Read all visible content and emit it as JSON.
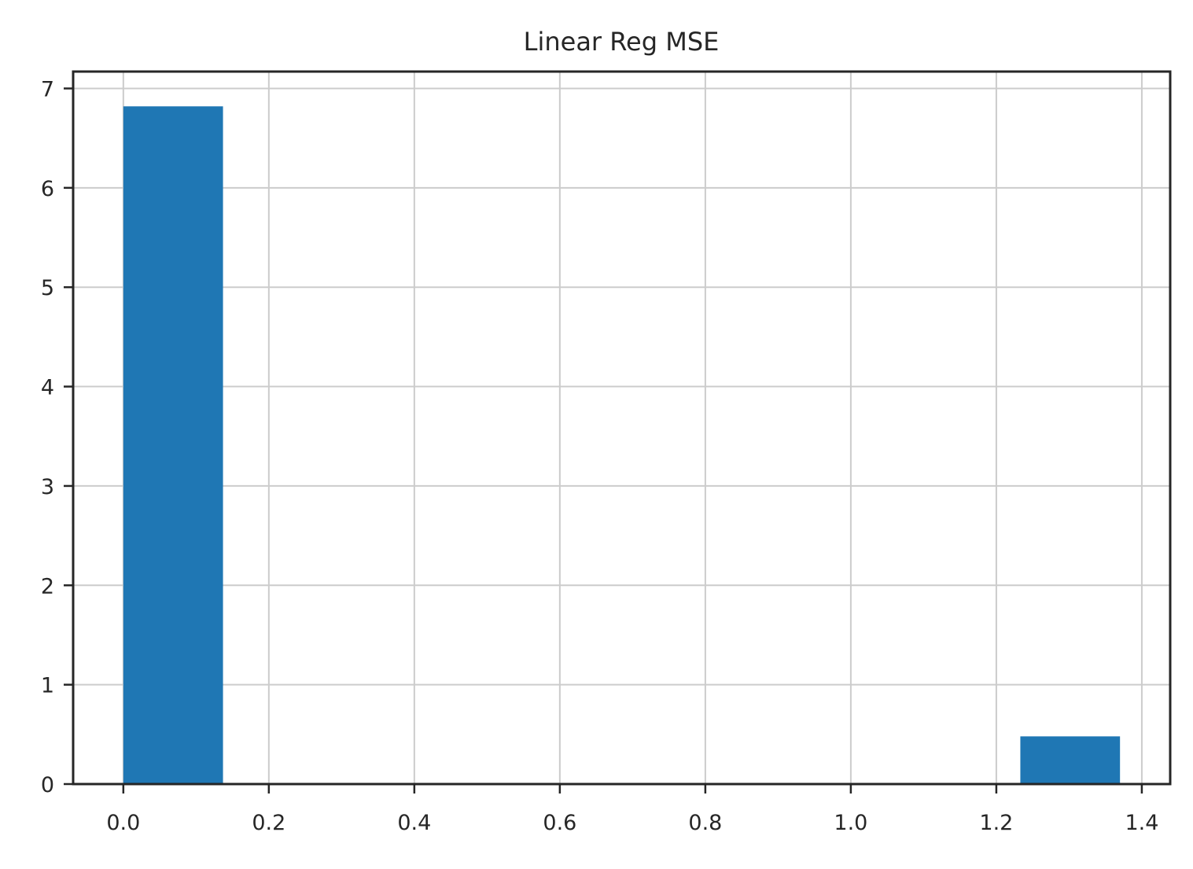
{
  "chart_data": {
    "type": "bar",
    "title": "Linear Reg MSE",
    "xlabel": "",
    "ylabel": "",
    "bins": [
      {
        "x0": 0.0,
        "x1": 0.137,
        "value": 6.82
      },
      {
        "x0": 0.137,
        "x1": 0.274,
        "value": 0
      },
      {
        "x0": 0.274,
        "x1": 0.411,
        "value": 0
      },
      {
        "x0": 0.411,
        "x1": 0.548,
        "value": 0
      },
      {
        "x0": 0.548,
        "x1": 0.685,
        "value": 0
      },
      {
        "x0": 0.685,
        "x1": 0.822,
        "value": 0
      },
      {
        "x0": 0.822,
        "x1": 0.959,
        "value": 0
      },
      {
        "x0": 0.959,
        "x1": 1.096,
        "value": 0
      },
      {
        "x0": 1.096,
        "x1": 1.233,
        "value": 0
      },
      {
        "x0": 1.233,
        "x1": 1.37,
        "value": 0.48
      }
    ],
    "xlim": [
      -0.069,
      1.439
    ],
    "ylim": [
      0,
      7.17
    ],
    "xticks": [
      0.0,
      0.2,
      0.4,
      0.6,
      0.8,
      1.0,
      1.2,
      1.4
    ],
    "xtick_labels": [
      "0.0",
      "0.2",
      "0.4",
      "0.6",
      "0.8",
      "1.0",
      "1.2",
      "1.4"
    ],
    "yticks": [
      0,
      1,
      2,
      3,
      4,
      5,
      6,
      7
    ],
    "ytick_labels": [
      "0",
      "1",
      "2",
      "3",
      "4",
      "5",
      "6",
      "7"
    ],
    "grid": true,
    "colors": {
      "bar": "#1f77b4",
      "grid": "#cccccc",
      "axes": "#262626"
    }
  }
}
